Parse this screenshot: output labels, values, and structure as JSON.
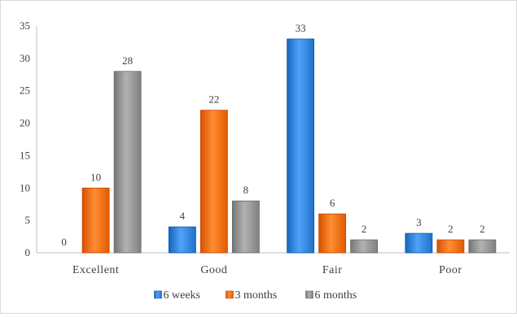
{
  "chart_data": {
    "type": "bar",
    "title": "",
    "xlabel": "",
    "ylabel": "",
    "categories": [
      "Excellent",
      "Good",
      "Fair",
      "Poor"
    ],
    "series": [
      {
        "name": "6 weeks",
        "values": [
          0,
          4,
          33,
          3
        ],
        "color": "#2e7fd6"
      },
      {
        "name": "3 months",
        "values": [
          10,
          22,
          6,
          2
        ],
        "color": "#f06a0f"
      },
      {
        "name": "6 months",
        "values": [
          28,
          8,
          2,
          2
        ],
        "color": "#8f8f8f"
      }
    ],
    "ylim": [
      0,
      35
    ],
    "yticks": [
      0,
      5,
      10,
      15,
      20,
      25,
      30,
      35
    ],
    "grid": false,
    "legend_position": "bottom"
  }
}
